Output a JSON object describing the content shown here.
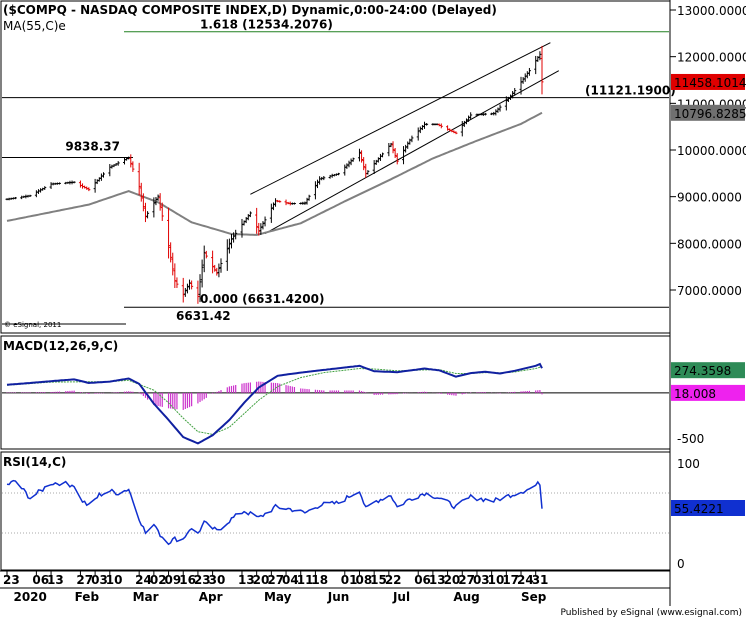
{
  "header": {
    "title": "($COMPQ - NASDAQ COMPOSITE INDEX,D) Dynamic,0:00-24:00 (Delayed)",
    "ma_label": "MA(55,C)e",
    "watermark": "© eSignal, 2011"
  },
  "footer": {
    "credit": "Published by eSignal (www.esignal.com)"
  },
  "colors": {
    "price_up": "#000000",
    "price_down": "#e00000",
    "ma": "#808080",
    "macd": "#1020a0",
    "signal": "#40a040",
    "histogram": "#cc33cc",
    "rsi": "#1030d0",
    "fib": "#208020",
    "last_price_bg": "#e00000",
    "ma_value_bg": "#707070",
    "macd_value_bg": "#2e8b57",
    "hist_value_bg": "#ee22ee",
    "rsi_value_bg": "#1030d0"
  },
  "chart_data": [
    {
      "type": "candlestick",
      "panel": "price",
      "ylim": [
        6000,
        13200
      ],
      "y_ticks": [
        "13000.0000",
        "12000.0000",
        "11000.0000",
        "10000.0000",
        "9000.0000",
        "8000.0000",
        "7000.0000"
      ],
      "y_tick_values": [
        13000,
        12000,
        11000,
        10000,
        9000,
        8000,
        7000
      ],
      "x_tick_labels": [
        "23",
        "06",
        "13",
        "27",
        "03",
        "10",
        "24",
        "02",
        "09",
        "16",
        "23",
        "30",
        "13",
        "20",
        "27",
        "04",
        "11",
        "18",
        "01",
        "08",
        "15",
        "22",
        "06",
        "13",
        "20",
        "27",
        "03",
        "10",
        "17",
        "24",
        "31"
      ],
      "x_tick_days": [
        0,
        14,
        21,
        35,
        42,
        49,
        63,
        70,
        77,
        84,
        91,
        98,
        112,
        119,
        126,
        133,
        140,
        147,
        161,
        168,
        175,
        182,
        196,
        203,
        210,
        217,
        224,
        231,
        238,
        245,
        252
      ],
      "month_labels": [
        "2020",
        "Feb",
        "Mar",
        "Apr",
        "May",
        "Jun",
        "Jul",
        "Aug",
        "Sep"
      ],
      "month_label_days": [
        12,
        39,
        67,
        98,
        130,
        159,
        189,
        220,
        252
      ],
      "close_anchors": [
        [
          "2019-12-23",
          8945
        ],
        [
          "2020-01-03",
          9020
        ],
        [
          "2020-01-13",
          9270
        ],
        [
          "2020-01-24",
          9310
        ],
        [
          "2020-01-31",
          9150
        ],
        [
          "2020-02-10",
          9630
        ],
        [
          "2020-02-19",
          9838
        ],
        [
          "2020-02-24",
          9220
        ],
        [
          "2020-02-27",
          8570
        ],
        [
          "2020-03-04",
          9010
        ],
        [
          "2020-03-09",
          7950
        ],
        [
          "2020-03-12",
          7200
        ],
        [
          "2020-03-16",
          6900
        ],
        [
          "2020-03-19",
          7150
        ],
        [
          "2020-03-23",
          6860
        ],
        [
          "2020-03-26",
          7800
        ],
        [
          "2020-04-01",
          7360
        ],
        [
          "2020-04-08",
          8090
        ],
        [
          "2020-04-17",
          8650
        ],
        [
          "2020-04-21",
          8260
        ],
        [
          "2020-04-29",
          8910
        ],
        [
          "2020-05-06",
          8850
        ],
        [
          "2020-05-13",
          8860
        ],
        [
          "2020-05-20",
          9380
        ],
        [
          "2020-05-29",
          9490
        ],
        [
          "2020-06-08",
          9950
        ],
        [
          "2020-06-11",
          9490
        ],
        [
          "2020-06-23",
          10130
        ],
        [
          "2020-06-26",
          9760
        ],
        [
          "2020-07-02",
          10210
        ],
        [
          "2020-07-09",
          10550
        ],
        [
          "2020-07-15",
          10550
        ],
        [
          "2020-07-24",
          10360
        ],
        [
          "2020-07-31",
          10750
        ],
        [
          "2020-08-11",
          10780
        ],
        [
          "2020-08-19",
          11150
        ],
        [
          "2020-08-28",
          11700
        ],
        [
          "2020-09-02",
          12050
        ],
        [
          "2020-09-03",
          11460
        ]
      ],
      "ma_anchors": [
        [
          "2019-12-23",
          8480
        ],
        [
          "2020-01-31",
          8830
        ],
        [
          "2020-02-19",
          9120
        ],
        [
          "2020-03-04",
          8880
        ],
        [
          "2020-03-20",
          8450
        ],
        [
          "2020-04-08",
          8200
        ],
        [
          "2020-04-20",
          8180
        ],
        [
          "2020-05-11",
          8430
        ],
        [
          "2020-06-01",
          8900
        ],
        [
          "2020-06-22",
          9350
        ],
        [
          "2020-07-13",
          9820
        ],
        [
          "2020-08-03",
          10200
        ],
        [
          "2020-08-24",
          10560
        ],
        [
          "2020-09-03",
          10797
        ]
      ],
      "horizontal_levels": [
        {
          "label": "9838.37",
          "value": 9838.37
        },
        {
          "label": "6631.42",
          "value": 6631.42
        },
        {
          "label": "0.000 (6631.4200)",
          "value": 6631.42
        },
        {
          "label": "1.618 (12534.2076)",
          "value": 12534.2076
        },
        {
          "label": "(11121.1900)",
          "value": 11121.19
        }
      ],
      "channel": {
        "upper": [
          [
            "2020-04-17",
            9050
          ],
          [
            "2020-09-07",
            12300
          ]
        ],
        "lower": [
          [
            "2020-04-24",
            8210
          ],
          [
            "2020-09-11",
            11700
          ]
        ]
      },
      "value_labels": {
        "last_price": "11458.1014",
        "ma_value": "10796.8285"
      }
    },
    {
      "type": "line",
      "panel": "macd",
      "title": "MACD(12,26,9,C)",
      "ylim": [
        -600,
        520
      ],
      "y_ticks": [
        "-500"
      ],
      "y_tick_values": [
        -500
      ],
      "zero_level": 18.008,
      "macd_anchors": [
        [
          "2019-12-23",
          90
        ],
        [
          "2020-01-03",
          110
        ],
        [
          "2020-01-13",
          130
        ],
        [
          "2020-01-24",
          150
        ],
        [
          "2020-01-31",
          110
        ],
        [
          "2020-02-10",
          125
        ],
        [
          "2020-02-19",
          160
        ],
        [
          "2020-02-24",
          100
        ],
        [
          "2020-03-02",
          -120
        ],
        [
          "2020-03-09",
          -300
        ],
        [
          "2020-03-16",
          -490
        ],
        [
          "2020-03-23",
          -560
        ],
        [
          "2020-03-30",
          -470
        ],
        [
          "2020-04-07",
          -300
        ],
        [
          "2020-04-14",
          -110
        ],
        [
          "2020-04-21",
          60
        ],
        [
          "2020-04-30",
          190
        ],
        [
          "2020-05-11",
          225
        ],
        [
          "2020-05-22",
          255
        ],
        [
          "2020-06-08",
          300
        ],
        [
          "2020-06-15",
          240
        ],
        [
          "2020-06-26",
          230
        ],
        [
          "2020-07-09",
          270
        ],
        [
          "2020-07-16",
          250
        ],
        [
          "2020-07-24",
          180
        ],
        [
          "2020-07-31",
          220
        ],
        [
          "2020-08-07",
          235
        ],
        [
          "2020-08-14",
          215
        ],
        [
          "2020-08-21",
          245
        ],
        [
          "2020-08-31",
          300
        ],
        [
          "2020-09-02",
          320
        ],
        [
          "2020-09-03",
          274
        ]
      ],
      "signal_anchors": [
        [
          "2019-12-23",
          85
        ],
        [
          "2020-01-13",
          120
        ],
        [
          "2020-02-10",
          125
        ],
        [
          "2020-02-19",
          140
        ],
        [
          "2020-03-02",
          30
        ],
        [
          "2020-03-09",
          -110
        ],
        [
          "2020-03-16",
          -280
        ],
        [
          "2020-03-23",
          -430
        ],
        [
          "2020-03-30",
          -460
        ],
        [
          "2020-04-07",
          -380
        ],
        [
          "2020-04-14",
          -230
        ],
        [
          "2020-04-21",
          -80
        ],
        [
          "2020-04-30",
          70
        ],
        [
          "2020-05-11",
          170
        ],
        [
          "2020-05-22",
          225
        ],
        [
          "2020-06-08",
          270
        ],
        [
          "2020-06-15",
          265
        ],
        [
          "2020-06-26",
          245
        ],
        [
          "2020-07-09",
          255
        ],
        [
          "2020-07-16",
          258
        ],
        [
          "2020-07-24",
          215
        ],
        [
          "2020-07-31",
          215
        ],
        [
          "2020-08-07",
          225
        ],
        [
          "2020-08-14",
          222
        ],
        [
          "2020-08-21",
          232
        ],
        [
          "2020-08-31",
          270
        ],
        [
          "2020-09-03",
          292
        ]
      ],
      "value_labels": {
        "macd": "274.3598",
        "histogram": "18.008"
      }
    },
    {
      "type": "line",
      "panel": "rsi",
      "title": "RSI(14,C)",
      "ylim": [
        -5,
        108
      ],
      "y_ticks": [
        "100",
        "0"
      ],
      "y_tick_values": [
        100,
        0
      ],
      "reference_levels": [
        70,
        30
      ],
      "rsi_anchors": [
        [
          "2019-12-23",
          78
        ],
        [
          "2019-12-27",
          82
        ],
        [
          "2020-01-03",
          65
        ],
        [
          "2020-01-08",
          72
        ],
        [
          "2020-01-13",
          80
        ],
        [
          "2020-01-17",
          80
        ],
        [
          "2020-01-24",
          78
        ],
        [
          "2020-01-27",
          64
        ],
        [
          "2020-01-31",
          57
        ],
        [
          "2020-02-05",
          68
        ],
        [
          "2020-02-10",
          72
        ],
        [
          "2020-02-14",
          70
        ],
        [
          "2020-02-19",
          74
        ],
        [
          "2020-02-24",
          45
        ],
        [
          "2020-02-27",
          30
        ],
        [
          "2020-03-03",
          38
        ],
        [
          "2020-03-05",
          28
        ],
        [
          "2020-03-09",
          21
        ],
        [
          "2020-03-12",
          24
        ],
        [
          "2020-03-16",
          24
        ],
        [
          "2020-03-19",
          34
        ],
        [
          "2020-03-23",
          30
        ],
        [
          "2020-03-26",
          40
        ],
        [
          "2020-04-01",
          32
        ],
        [
          "2020-04-08",
          44
        ],
        [
          "2020-04-14",
          52
        ],
        [
          "2020-04-21",
          45
        ],
        [
          "2020-04-29",
          56
        ],
        [
          "2020-05-06",
          54
        ],
        [
          "2020-05-13",
          50
        ],
        [
          "2020-05-20",
          58
        ],
        [
          "2020-05-29",
          60
        ],
        [
          "2020-06-08",
          73
        ],
        [
          "2020-06-11",
          54
        ],
        [
          "2020-06-16",
          62
        ],
        [
          "2020-06-23",
          68
        ],
        [
          "2020-06-26",
          56
        ],
        [
          "2020-07-02",
          64
        ],
        [
          "2020-07-09",
          70
        ],
        [
          "2020-07-15",
          66
        ],
        [
          "2020-07-24",
          56
        ],
        [
          "2020-07-31",
          66
        ],
        [
          "2020-08-11",
          62
        ],
        [
          "2020-08-19",
          68
        ],
        [
          "2020-08-28",
          74
        ],
        [
          "2020-09-02",
          80
        ],
        [
          "2020-09-03",
          55
        ]
      ],
      "value_labels": {
        "rsi": "55.4221"
      }
    }
  ]
}
